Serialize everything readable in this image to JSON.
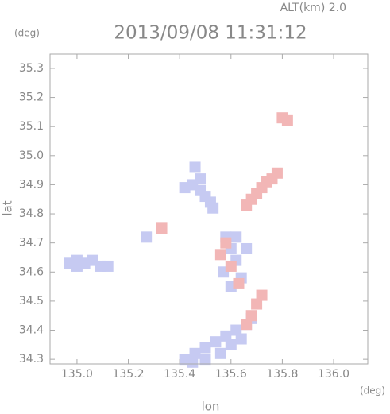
{
  "chart_data": {
    "type": "scatter",
    "title": "2013/09/08 11:31:12",
    "subtitle": "ALT(km) 2.0",
    "y_unit": "(deg)",
    "x_unit": "(deg)",
    "xlabel": "lon",
    "ylabel": "lat",
    "xlim": [
      134.895,
      136.133
    ],
    "ylim": [
      34.284,
      35.349
    ],
    "xticks": [
      {
        "value": 135,
        "label": "135.0"
      },
      135.2,
      135.4,
      135.6,
      135.8,
      {
        "value": 136,
        "label": "136.0"
      }
    ],
    "yticks": [
      34.3,
      34.4,
      34.5,
      34.6,
      34.7,
      34.8,
      34.9,
      {
        "value": 35,
        "label": "35.0"
      },
      35.1,
      35.2,
      35.3
    ],
    "series": [
      {
        "color": "#c6caf2",
        "x": [
          134.97,
          135.0,
          135.03,
          135.06,
          135.09,
          135.12,
          135.0,
          135.27,
          135.42,
          135.45,
          135.48,
          135.5,
          135.52,
          135.48,
          135.46,
          135.53,
          135.58,
          135.6,
          135.62,
          135.57,
          135.64,
          135.6,
          135.66,
          135.62,
          135.42,
          135.46,
          135.5,
          135.54,
          135.58,
          135.62,
          135.66,
          135.5,
          135.56,
          135.6,
          135.64,
          135.68,
          135.45
        ],
        "y": [
          34.63,
          34.62,
          34.63,
          34.64,
          34.62,
          34.62,
          34.64,
          34.72,
          34.89,
          34.9,
          34.88,
          34.86,
          34.84,
          34.92,
          34.96,
          34.82,
          34.72,
          34.68,
          34.64,
          34.6,
          34.58,
          34.55,
          34.68,
          34.72,
          34.3,
          34.32,
          34.34,
          34.36,
          34.38,
          34.4,
          34.42,
          34.3,
          34.32,
          34.35,
          34.37,
          34.44,
          34.29
        ]
      },
      {
        "color": "#f2b6b6",
        "x": [
          135.78,
          135.76,
          135.72,
          135.7,
          135.68,
          135.66,
          135.74,
          135.8,
          135.82,
          135.56,
          135.6,
          135.63,
          135.58,
          135.7,
          135.68,
          135.66,
          135.72,
          135.33
        ],
        "y": [
          34.94,
          34.92,
          34.89,
          34.87,
          34.85,
          34.83,
          34.91,
          35.13,
          35.12,
          34.66,
          34.62,
          34.56,
          34.7,
          34.49,
          34.45,
          34.42,
          34.52,
          34.75
        ]
      }
    ]
  }
}
